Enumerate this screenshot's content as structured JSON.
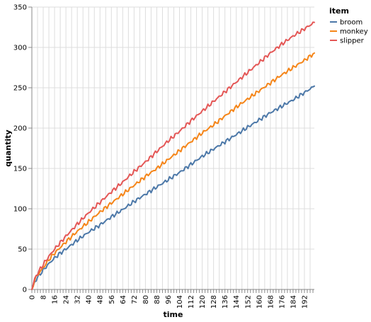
{
  "chart_data": {
    "type": "line",
    "xlabel": "time",
    "ylabel": "quantity",
    "xlim": [
      0,
      199
    ],
    "ylim": [
      0,
      350
    ],
    "x_tick_step": 4,
    "x_tick_label_step": 8,
    "y_ticks": [
      0,
      50,
      100,
      150,
      200,
      250,
      300,
      350
    ],
    "grid": true,
    "legend": {
      "title": "item",
      "position": "top-right",
      "entries": [
        {
          "name": "broom",
          "color": "#4c78a8"
        },
        {
          "name": "monkey",
          "color": "#f58518"
        },
        {
          "name": "slipper",
          "color": "#e45756"
        }
      ]
    },
    "series": [
      {
        "name": "broom",
        "color": "#4c78a8",
        "x": [
          0,
          2,
          4,
          8,
          12,
          16,
          20,
          24,
          32,
          40,
          48,
          56,
          64,
          72,
          80,
          88,
          96,
          104,
          112,
          120,
          128,
          136,
          144,
          152,
          160,
          168,
          176,
          184,
          192,
          199
        ],
        "values": [
          0,
          9,
          15,
          24,
          32,
          39,
          45,
          50,
          61,
          71,
          80,
          90,
          99,
          109,
          118,
          127,
          136,
          145,
          155,
          165,
          174,
          183,
          192,
          201,
          210,
          219,
          227,
          235,
          244,
          252
        ]
      },
      {
        "name": "monkey",
        "color": "#f58518",
        "x": [
          0,
          2,
          4,
          8,
          12,
          16,
          20,
          24,
          32,
          40,
          48,
          56,
          64,
          72,
          80,
          88,
          96,
          104,
          112,
          120,
          128,
          136,
          144,
          152,
          160,
          168,
          176,
          184,
          192,
          199
        ],
        "values": [
          0,
          12,
          18,
          27,
          37,
          45,
          52,
          59,
          72,
          84,
          96,
          107,
          118,
          129,
          140,
          150,
          161,
          172,
          183,
          194,
          204,
          215,
          226,
          236,
          246,
          256,
          266,
          275,
          284,
          293
        ]
      },
      {
        "name": "slipper",
        "color": "#e45756",
        "x": [
          0,
          2,
          4,
          8,
          12,
          16,
          20,
          24,
          32,
          40,
          48,
          56,
          64,
          72,
          80,
          88,
          96,
          104,
          112,
          120,
          128,
          136,
          144,
          152,
          160,
          168,
          176,
          184,
          192,
          199
        ],
        "values": [
          0,
          13,
          20,
          31,
          41,
          50,
          58,
          66,
          81,
          95,
          108,
          121,
          133,
          146,
          158,
          171,
          184,
          196,
          209,
          221,
          233,
          245,
          257,
          269,
          281,
          293,
          304,
          314,
          323,
          331
        ]
      }
    ]
  }
}
